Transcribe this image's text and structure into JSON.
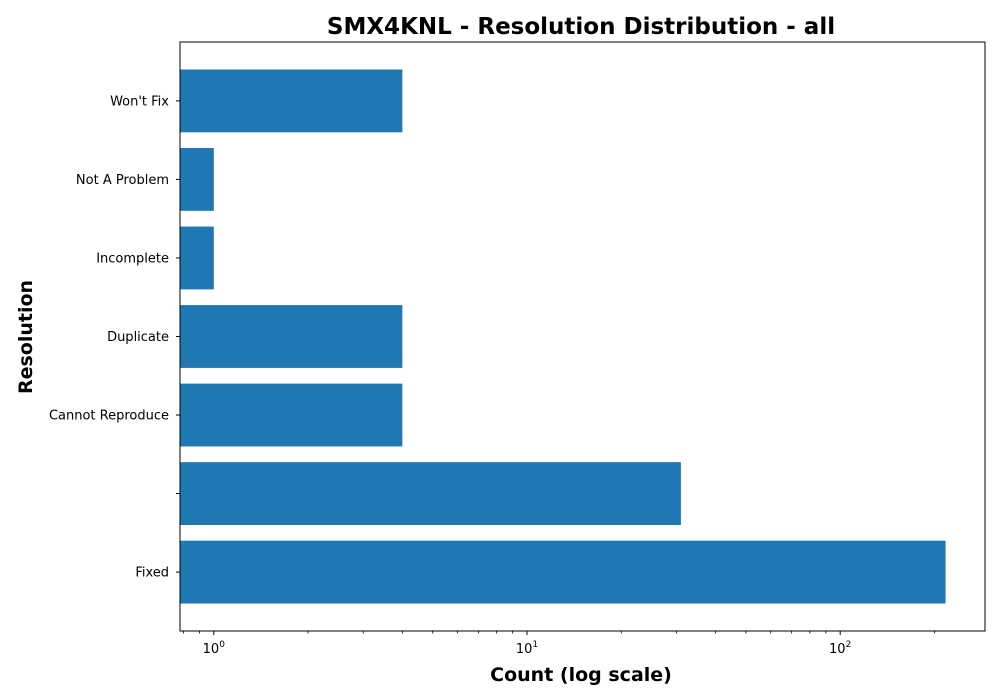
{
  "chart_data": {
    "type": "bar",
    "orientation": "horizontal",
    "title": "SMX4KNL - Resolution Distribution - all",
    "xlabel": "Count (log scale)",
    "ylabel": "Resolution",
    "xscale": "log",
    "xlim": [
      0.78,
      290
    ],
    "x_ticks": [
      {
        "value": 1,
        "base": "10",
        "exp": "0"
      },
      {
        "value": 10,
        "base": "10",
        "exp": "1"
      },
      {
        "value": 100,
        "base": "10",
        "exp": "2"
      }
    ],
    "grid": false,
    "legend": "none",
    "colors": {
      "bar": "#1f77b4",
      "axis": "#000000",
      "background": "#ffffff"
    },
    "categories": [
      "Fixed",
      "",
      "Cannot Reproduce",
      "Duplicate",
      "Incomplete",
      "Not A Problem",
      "Won't Fix"
    ],
    "values": [
      217,
      31,
      4,
      4,
      1,
      1,
      4
    ]
  }
}
